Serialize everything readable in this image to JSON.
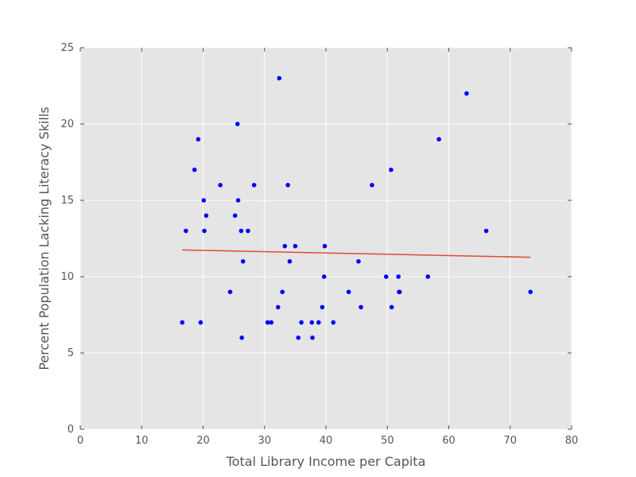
{
  "chart_data": {
    "type": "scatter",
    "title": "",
    "xlabel": "Total Library Income per Capita",
    "ylabel": "Percent Population Lacking Literacy Skills",
    "xlim": [
      0,
      80
    ],
    "ylim": [
      0,
      25
    ],
    "xticks": [
      0,
      10,
      20,
      30,
      40,
      50,
      60,
      70,
      80
    ],
    "yticks": [
      0,
      5,
      10,
      15,
      20,
      25
    ],
    "xtick_labels": [
      "0",
      "10",
      "20",
      "30",
      "40",
      "50",
      "60",
      "70",
      "80"
    ],
    "ytick_labels": [
      "0",
      "5",
      "10",
      "15",
      "20",
      "25"
    ],
    "grid": true,
    "background_color": "#e5e5e5",
    "grid_color": "#ffffff",
    "series": [
      {
        "kind": "points",
        "color": "#0000ff",
        "points": [
          [
            16.6,
            7
          ],
          [
            17.2,
            13
          ],
          [
            18.6,
            17
          ],
          [
            19.2,
            19
          ],
          [
            19.6,
            7
          ],
          [
            20.1,
            15
          ],
          [
            20.2,
            13
          ],
          [
            20.5,
            14
          ],
          [
            22.8,
            16
          ],
          [
            24.4,
            9
          ],
          [
            25.2,
            14
          ],
          [
            25.6,
            20
          ],
          [
            25.7,
            15
          ],
          [
            26.2,
            13
          ],
          [
            26.3,
            6
          ],
          [
            26.5,
            11
          ],
          [
            27.3,
            13
          ],
          [
            28.3,
            16
          ],
          [
            30.5,
            7
          ],
          [
            31.1,
            7
          ],
          [
            32.2,
            8
          ],
          [
            32.4,
            23
          ],
          [
            32.9,
            9
          ],
          [
            33.3,
            12
          ],
          [
            33.8,
            16
          ],
          [
            34.1,
            11
          ],
          [
            35.0,
            12
          ],
          [
            35.5,
            6
          ],
          [
            36.0,
            7
          ],
          [
            37.7,
            7
          ],
          [
            37.8,
            6
          ],
          [
            38.8,
            7
          ],
          [
            39.4,
            8
          ],
          [
            39.7,
            10
          ],
          [
            39.8,
            12
          ],
          [
            41.2,
            7
          ],
          [
            43.7,
            9
          ],
          [
            45.3,
            11
          ],
          [
            45.7,
            8
          ],
          [
            47.5,
            16
          ],
          [
            49.8,
            10
          ],
          [
            50.6,
            17
          ],
          [
            50.7,
            8
          ],
          [
            51.8,
            10
          ],
          [
            51.9,
            9
          ],
          [
            52.0,
            9
          ],
          [
            56.6,
            10
          ],
          [
            58.4,
            19
          ],
          [
            62.9,
            22
          ],
          [
            66.1,
            13
          ],
          [
            73.3,
            9
          ]
        ]
      },
      {
        "kind": "line",
        "color": "#e24a33",
        "points": [
          [
            16.6,
            11.75
          ],
          [
            73.3,
            11.27
          ]
        ]
      }
    ]
  }
}
